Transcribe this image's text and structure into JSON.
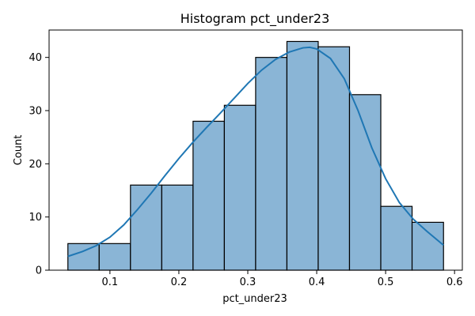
{
  "chart_data": {
    "type": "bar",
    "title": "Histogram pct_under23",
    "xlabel": "pct_under23",
    "ylabel": "Count",
    "bin_edges": [
      0.039,
      0.0844,
      0.1298,
      0.1752,
      0.2206,
      0.266,
      0.3114,
      0.3568,
      0.4022,
      0.4476,
      0.493,
      0.5384,
      0.584
    ],
    "values": [
      5,
      5,
      16,
      16,
      28,
      31,
      40,
      43,
      42,
      33,
      12,
      9
    ],
    "kde": {
      "x": [
        0.039,
        0.06,
        0.08,
        0.1,
        0.12,
        0.14,
        0.16,
        0.18,
        0.2,
        0.22,
        0.24,
        0.26,
        0.28,
        0.3,
        0.32,
        0.34,
        0.36,
        0.38,
        0.39,
        0.4,
        0.42,
        0.44,
        0.46,
        0.48,
        0.5,
        0.52,
        0.54,
        0.56,
        0.584
      ],
      "y": [
        2.6,
        3.5,
        4.6,
        6.2,
        8.5,
        11.4,
        14.5,
        17.8,
        21.0,
        24.0,
        26.8,
        29.5,
        32.3,
        35.1,
        37.6,
        39.6,
        41.0,
        41.8,
        41.9,
        41.6,
        39.8,
        36.0,
        30.0,
        23.0,
        17.2,
        12.7,
        9.6,
        7.3,
        4.7
      ]
    },
    "xticks": [
      "0.1",
      "0.2",
      "0.3",
      "0.4",
      "0.5",
      "0.6"
    ],
    "xtick_values": [
      0.1,
      0.2,
      0.3,
      0.4,
      0.5,
      0.6
    ],
    "yticks": [
      "0",
      "10",
      "20",
      "30",
      "40"
    ],
    "ytick_values": [
      0,
      10,
      20,
      30,
      40
    ],
    "xlim": [
      0.0117,
      0.6113
    ],
    "ylim": [
      0,
      45.15
    ],
    "grid": false,
    "bar_color": "#8ab5d6",
    "bar_edge_color": "#000000",
    "kde_color": "#1f77b4"
  }
}
